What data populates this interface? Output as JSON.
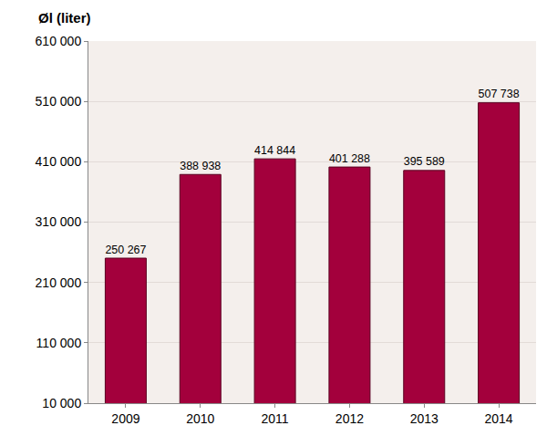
{
  "chart_data": {
    "type": "bar",
    "title": "Øl (liter)",
    "categories": [
      "2009",
      "2010",
      "2011",
      "2012",
      "2013",
      "2014"
    ],
    "values": [
      250267,
      388938,
      414844,
      401288,
      395589,
      507738
    ],
    "value_labels": [
      "250 267",
      "388 938",
      "414 844",
      "401 288",
      "395 589",
      "507 738"
    ],
    "data_labels": true,
    "color": "#a3003c",
    "ylim": [
      10000,
      610000
    ],
    "yticks": [
      {
        "value": 10000,
        "label": "10 000"
      },
      {
        "value": 110000,
        "label": "110 000"
      },
      {
        "value": 210000,
        "label": "210 000"
      },
      {
        "value": 310000,
        "label": "310 000"
      },
      {
        "value": 410000,
        "label": "410 000"
      },
      {
        "value": 510000,
        "label": "510 000"
      },
      {
        "value": 610000,
        "label": "610 000"
      }
    ],
    "grid": true
  }
}
